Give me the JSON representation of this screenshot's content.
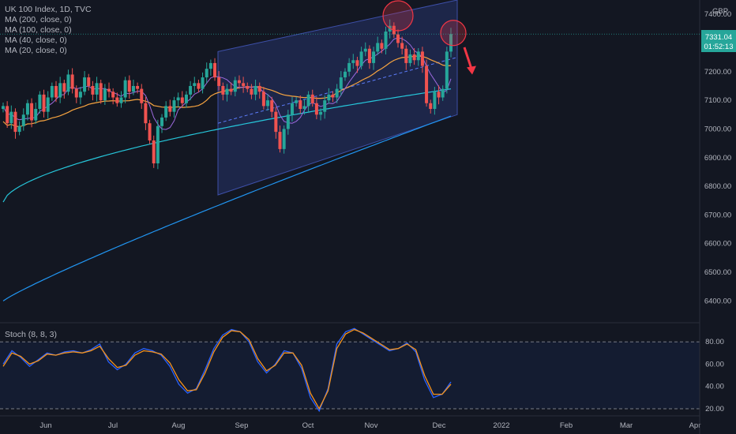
{
  "header": {
    "title": "UK 100 Index, 1D, TVC",
    "ma_lines": [
      "MA (200, close, 0)",
      "MA (100, close, 0)",
      "MA (40, close, 0)",
      "MA (20, close, 0)"
    ],
    "currency": "GBP"
  },
  "price_tag": {
    "price": "7331.04",
    "countdown": "01:52:13"
  },
  "stoch_title": "Stoch (8, 8, 3)",
  "colors": {
    "background": "#131722",
    "up": "#26a69a",
    "down": "#ef5350",
    "ma200": "#2196f3",
    "ma100": "#26c6da",
    "ma40": "#f7a440",
    "ma20": "#9c6ade",
    "channel": "#2a3a7a",
    "stoch_k": "#2962ff",
    "stoch_d": "#f7931a",
    "arrow": "#f23645"
  },
  "chart_data": [
    {
      "type": "candlestick",
      "title": "UK 100 Index, 1D, TVC",
      "x_tick_labels": [
        "Jun",
        "Jul",
        "Aug",
        "Sep",
        "Oct",
        "Nov",
        "Dec",
        "2022",
        "Feb",
        "Mar",
        "Apr"
      ],
      "y_tick_labels": [
        "6400.00",
        "6500.00",
        "6600.00",
        "6700.00",
        "6800.00",
        "6900.00",
        "7000.00",
        "7100.00",
        "7200.00",
        "7300.00",
        "7400.00"
      ],
      "ylim": [
        6335,
        7450
      ],
      "grid": false,
      "last_price": 7331.04,
      "closes_approx": [
        7080,
        7020,
        7060,
        6990,
        7010,
        7050,
        7090,
        7030,
        7070,
        7120,
        7060,
        7110,
        7150,
        7110,
        7160,
        7130,
        7190,
        7140,
        7110,
        7130,
        7180,
        7150,
        7120,
        7160,
        7100,
        7140,
        7130,
        7110,
        7090,
        7110,
        7170,
        7130,
        7150,
        7140,
        7090,
        7020,
        6960,
        6880,
        7010,
        7040,
        7080,
        7060,
        7100,
        7110,
        7090,
        7120,
        7150,
        7160,
        7140,
        7180,
        7210,
        7230,
        7180,
        7150,
        7120,
        7140,
        7130,
        7170,
        7160,
        7150,
        7140,
        7120,
        7150,
        7130,
        7080,
        7100,
        7060,
        6990,
        6930,
        7000,
        7050,
        7090,
        7100,
        7070,
        7080,
        7120,
        7090,
        7050,
        7060,
        7100,
        7120,
        7110,
        7140,
        7180,
        7200,
        7230,
        7240,
        7220,
        7270,
        7280,
        7230,
        7270,
        7300,
        7280,
        7340,
        7360,
        7330,
        7300,
        7280,
        7230,
        7260,
        7240,
        7270,
        7220,
        7090,
        7070,
        7130,
        7110,
        7140,
        7270,
        7331
      ],
      "series": [
        {
          "name": "MA (200, close, 0)",
          "values_start_end": [
            6400,
            7045
          ]
        },
        {
          "name": "MA (100, close, 0)",
          "values_start_end": [
            6745,
            7140
          ]
        },
        {
          "name": "MA (40, close, 0)",
          "values_start_end": [
            6960,
            7235
          ]
        },
        {
          "name": "MA (20, close, 0)",
          "values_start_end": [
            7080,
            7250
          ]
        }
      ]
    },
    {
      "type": "line",
      "title": "Stoch (8, 8, 3)",
      "y_tick_labels": [
        "20.00",
        "40.00",
        "60.00",
        "80.00"
      ],
      "ylim": [
        15,
        95
      ],
      "reference_levels": [
        20,
        80
      ],
      "series": [
        {
          "name": "%K",
          "values": [
            60,
            72,
            66,
            58,
            64,
            70,
            68,
            71,
            72,
            70,
            73,
            78,
            62,
            55,
            60,
            70,
            74,
            72,
            68,
            58,
            42,
            34,
            38,
            55,
            74,
            86,
            91,
            89,
            80,
            62,
            52,
            60,
            72,
            70,
            56,
            30,
            18,
            38,
            78,
            89,
            92,
            87,
            82,
            77,
            72,
            74,
            79,
            71,
            46,
            30,
            33,
            44
          ]
        },
        {
          "name": "%D",
          "values": [
            58,
            70,
            67,
            60,
            63,
            69,
            68,
            70,
            71,
            70,
            72,
            76,
            65,
            57,
            59,
            68,
            72,
            71,
            69,
            61,
            46,
            36,
            37,
            52,
            71,
            84,
            90,
            89,
            82,
            65,
            54,
            59,
            70,
            70,
            59,
            34,
            20,
            36,
            74,
            87,
            91,
            88,
            83,
            78,
            73,
            74,
            78,
            73,
            50,
            33,
            33,
            42
          ]
        }
      ]
    }
  ]
}
